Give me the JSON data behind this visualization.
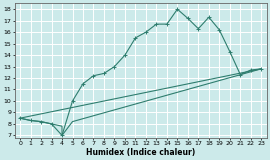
{
  "title": "",
  "xlabel": "Humidex (Indice chaleur)",
  "ylabel": "",
  "bg_color": "#cceaea",
  "grid_color": "#ffffff",
  "line_color": "#2e7d6e",
  "xlim": [
    -0.5,
    23.5
  ],
  "ylim": [
    6.8,
    18.5
  ],
  "xticks": [
    0,
    1,
    2,
    3,
    4,
    5,
    6,
    7,
    8,
    9,
    10,
    11,
    12,
    13,
    14,
    15,
    16,
    17,
    18,
    19,
    20,
    21,
    22,
    23
  ],
  "yticks": [
    7,
    8,
    9,
    10,
    11,
    12,
    13,
    14,
    15,
    16,
    17,
    18
  ],
  "line1_x": [
    0,
    1,
    2,
    3,
    4,
    5,
    6,
    7,
    8,
    9,
    10,
    11,
    12,
    13,
    14,
    15,
    16,
    17,
    18,
    19,
    20,
    21,
    22,
    23
  ],
  "line1_y": [
    8.5,
    8.3,
    8.2,
    8.0,
    7.0,
    10.0,
    11.5,
    12.2,
    12.4,
    13.0,
    14.0,
    15.5,
    16.0,
    16.7,
    16.7,
    18.0,
    17.2,
    16.3,
    17.3,
    16.2,
    14.3,
    12.3,
    12.7,
    12.8
  ],
  "line2_x": [
    0,
    23
  ],
  "line2_y": [
    8.5,
    12.8
  ],
  "line3_x": [
    0,
    1,
    2,
    3,
    4,
    4,
    5,
    23
  ],
  "line3_y": [
    8.5,
    8.3,
    8.2,
    8.0,
    7.8,
    7.0,
    8.2,
    12.8
  ]
}
